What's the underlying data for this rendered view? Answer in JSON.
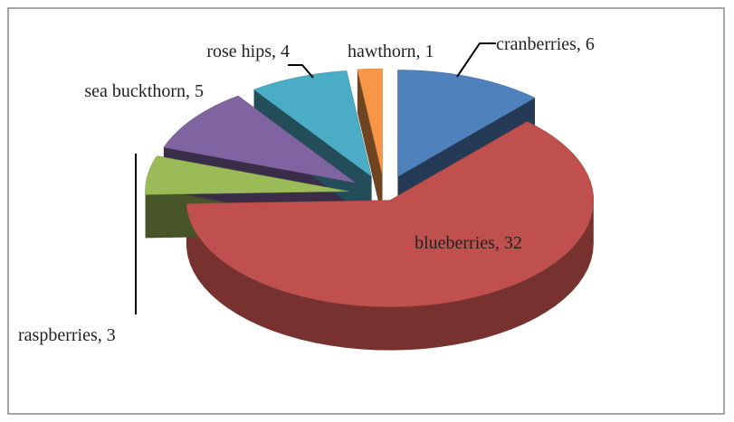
{
  "chart_data": {
    "type": "pie3d",
    "categories": [
      "cranberries",
      "blueberries",
      "raspberries",
      "sea buckthorn",
      "rose hips",
      "hawthorn"
    ],
    "values": [
      6,
      32,
      3,
      5,
      4,
      1
    ],
    "value_labels": [
      "cranberries, 6",
      "blueberries, 32",
      "raspberries, 3",
      "sea buckthorn, 5",
      "rose hips, 4",
      "hawthorn, 1"
    ],
    "colors": [
      "#4f81bd",
      "#c0504d",
      "#9bbb59",
      "#8064a2",
      "#4bacc6",
      "#f79646"
    ]
  }
}
